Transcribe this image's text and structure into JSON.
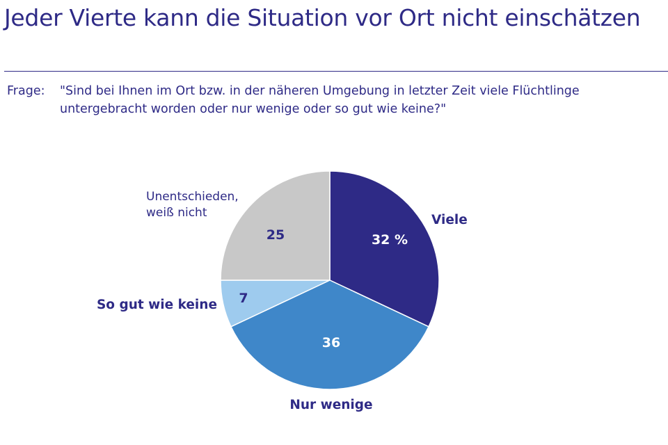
{
  "title": "Jeder Vierte kann die Situation vor Ort nicht einschätzen",
  "question": {
    "prefix": "Frage:",
    "text": "\"Sind bei Ihnen im Ort bzw. in der näheren Umgebung in letzter Zeit viele Flüchtlinge untergebracht worden oder nur wenige oder so gut wie keine?\""
  },
  "chart_data": {
    "type": "pie",
    "unit": "%",
    "slices": [
      {
        "label": "Viele",
        "value": 32,
        "value_label": "32 %",
        "color": "#2e2a86",
        "text_color": "#ffffff"
      },
      {
        "label": "Nur wenige",
        "value": 36,
        "value_label": "36",
        "color": "#3f87c9",
        "text_color": "#ffffff"
      },
      {
        "label": "So gut wie keine",
        "value": 7,
        "value_label": "7",
        "color": "#9ecbee",
        "text_color": "#2e2a86"
      },
      {
        "label": "Unentschieden, weiß nicht",
        "value": 25,
        "value_label": "25",
        "color": "#c8c8c8",
        "text_color": "#2e2a86"
      }
    ],
    "start_angle_deg": 0,
    "direction": "clockwise",
    "legend": "none"
  }
}
